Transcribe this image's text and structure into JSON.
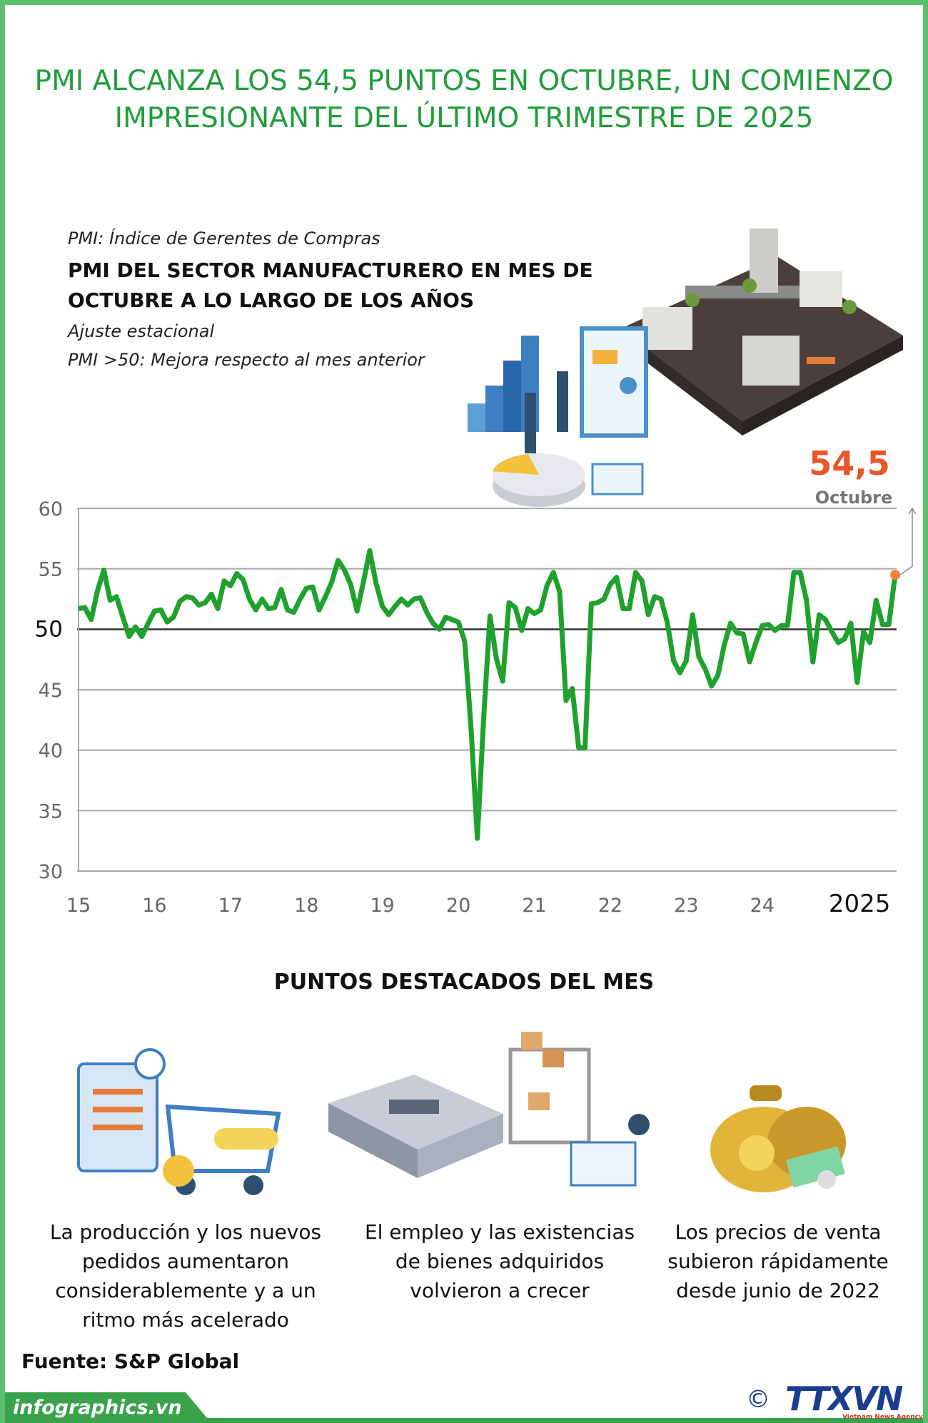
{
  "header": {
    "title": "PMI ALCANZA LOS 54,5 PUNTOS EN OCTUBRE, UN COMIENZO IMPRESIONANTE DEL ÚLTIMO TRIMESTRE DE 2025"
  },
  "chart_data": {
    "type": "line",
    "note": "PMI: Índice de Gerentes de Compras",
    "title": "PMI DEL SECTOR MANUFACTURERO EN MES DE OCTUBRE A LO LARGO DE LOS AÑOS",
    "subtitle": [
      "Ajuste estacional",
      "PMI >50: Mejora respecto al mes anterior"
    ],
    "annotation": "Octubre",
    "color": "#1fa12e",
    "highlight_color": "#f0833a",
    "reference_line": 50,
    "grid": true,
    "ylim": [
      30,
      60
    ],
    "yticks": [
      30,
      35,
      40,
      45,
      50,
      55,
      60
    ],
    "categories": [
      "15",
      null,
      null,
      null,
      null,
      null,
      null,
      null,
      null,
      null,
      null,
      null,
      "16",
      null,
      null,
      null,
      null,
      null,
      null,
      null,
      null,
      null,
      null,
      null,
      "17",
      null,
      null,
      null,
      null,
      null,
      null,
      null,
      null,
      null,
      null,
      null,
      "18",
      null,
      null,
      null,
      null,
      null,
      null,
      null,
      null,
      null,
      null,
      null,
      "19",
      null,
      null,
      null,
      null,
      null,
      null,
      null,
      null,
      null,
      null,
      null,
      "20",
      null,
      null,
      null,
      null,
      null,
      null,
      null,
      null,
      null,
      null,
      null,
      "21",
      null,
      null,
      null,
      null,
      null,
      null,
      null,
      null,
      null,
      null,
      null,
      "22",
      null,
      null,
      null,
      null,
      null,
      null,
      null,
      null,
      null,
      null,
      null,
      "23",
      null,
      null,
      null,
      null,
      null,
      null,
      null,
      null,
      null,
      null,
      null,
      "24",
      null,
      null,
      null,
      null,
      null,
      null,
      null,
      null,
      null,
      null,
      null,
      "2025",
      null,
      null,
      null,
      null,
      null,
      null,
      null,
      null,
      null
    ],
    "values": [
      51.7,
      51.8,
      50.8,
      53.2,
      54.9,
      52.4,
      52.7,
      51.0,
      49.4,
      50.2,
      49.4,
      50.5,
      51.5,
      51.6,
      50.6,
      51.0,
      52.3,
      52.7,
      52.6,
      52.0,
      52.2,
      52.9,
      51.7,
      54.0,
      53.6,
      54.6,
      54.1,
      52.5,
      51.6,
      52.5,
      51.7,
      51.8,
      53.3,
      51.6,
      51.4,
      52.5,
      53.4,
      53.5,
      51.6,
      52.7,
      53.9,
      55.7,
      54.9,
      53.7,
      51.5,
      53.9,
      56.5,
      53.8,
      51.9,
      51.2,
      51.9,
      52.5,
      52.0,
      52.5,
      52.6,
      51.4,
      50.5,
      50.0,
      51.0,
      50.8,
      50.6,
      49.0,
      41.9,
      32.7,
      42.7,
      51.1,
      47.6,
      45.7,
      52.2,
      51.8,
      49.9,
      51.7,
      51.3,
      51.6,
      53.6,
      54.7,
      53.1,
      44.1,
      45.1,
      40.2,
      40.2,
      52.1,
      52.2,
      52.5,
      53.7,
      54.3,
      51.7,
      51.7,
      54.7,
      54.0,
      51.2,
      52.7,
      52.5,
      50.6,
      47.4,
      46.4,
      47.4,
      51.2,
      47.7,
      46.7,
      45.3,
      46.2,
      48.7,
      50.5,
      49.7,
      49.6,
      47.3,
      48.9,
      50.3,
      50.4,
      49.9,
      50.3,
      50.3,
      54.7,
      54.7,
      52.4,
      47.3,
      51.2,
      50.8,
      49.8,
      48.9,
      49.2,
      50.5,
      45.6,
      49.8,
      48.9,
      52.4,
      50.4,
      50.4,
      54.5
    ],
    "value_labels": [
      null,
      null,
      null,
      null,
      null,
      null,
      null,
      null,
      null,
      null,
      null,
      null,
      null,
      null,
      null,
      null,
      null,
      null,
      null,
      null,
      null,
      null,
      null,
      null,
      null,
      null,
      null,
      null,
      null,
      null,
      null,
      null,
      null,
      null,
      null,
      null,
      null,
      null,
      null,
      null,
      null,
      null,
      null,
      null,
      null,
      null,
      null,
      null,
      null,
      null,
      null,
      null,
      null,
      null,
      null,
      null,
      null,
      null,
      null,
      null,
      null,
      null,
      null,
      null,
      null,
      null,
      null,
      null,
      null,
      null,
      null,
      null,
      null,
      null,
      null,
      null,
      null,
      null,
      null,
      null,
      null,
      null,
      null,
      null,
      null,
      null,
      null,
      null,
      null,
      null,
      null,
      null,
      null,
      null,
      null,
      null,
      null,
      null,
      null,
      null,
      null,
      null,
      null,
      null,
      null,
      null,
      null,
      null,
      null,
      null,
      null,
      null,
      null,
      null,
      null,
      null,
      null,
      null,
      null,
      null,
      null,
      null,
      null,
      null,
      null,
      null,
      null,
      null,
      null,
      "54,5"
    ]
  },
  "highlights": {
    "title": "PUNTOS DESTACADOS DEL MES",
    "items": [
      "La producción y los nuevos pedidos aumentaron considerablemente y a un ritmo más acelerado",
      "El empleo y las existencias de bienes adquiridos volvieron a crecer",
      "Los precios de venta subieron rápidamente desde junio de 2022"
    ]
  },
  "source": "Fuente: S&P Global",
  "footer": {
    "site": "infographics.vn",
    "copyright": "©",
    "logo": "TTXVN",
    "agency": "Vietnam News Agency"
  }
}
